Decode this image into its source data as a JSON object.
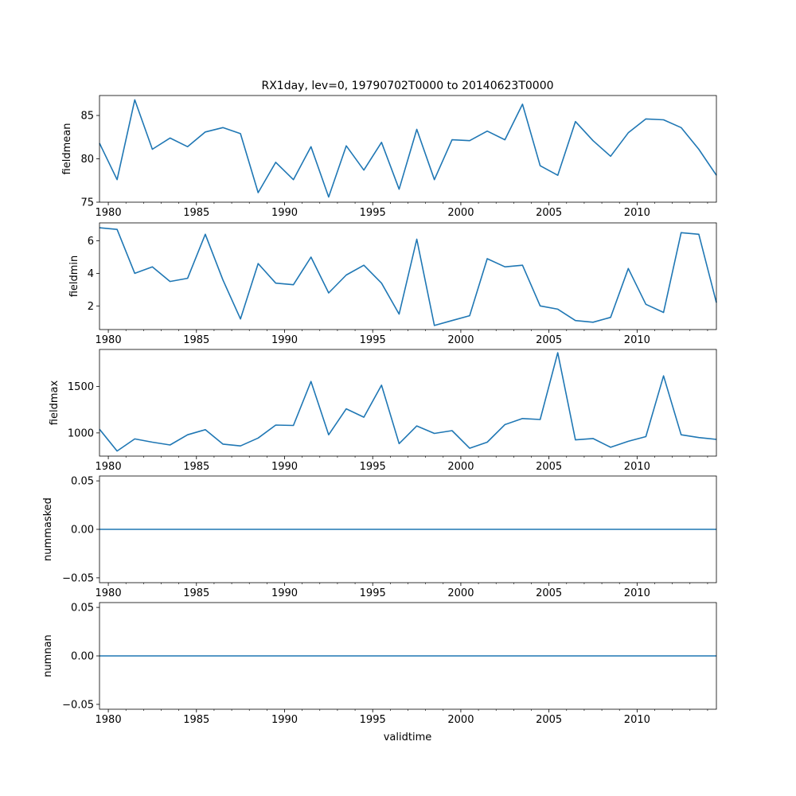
{
  "figure": {
    "title": "RX1day, lev=0, 19790702T0000 to 20140623T0000",
    "xlabel": "validtime",
    "line_color": "#1f77b4",
    "x_ticks": [
      1980,
      1985,
      1990,
      1995,
      2000,
      2005,
      2010
    ],
    "x_tick_labels": [
      "1980",
      "1985",
      "1990",
      "1995",
      "2000",
      "2005",
      "2010"
    ],
    "xlim": [
      1979.5,
      2014.5
    ]
  },
  "chart_data": [
    {
      "type": "line",
      "ylabel": "fieldmean",
      "ylim": [
        75,
        87.3
      ],
      "y_ticks": [
        75,
        80,
        85
      ],
      "y_tick_labels": [
        "75",
        "80",
        "85"
      ],
      "x": [
        1979.5,
        1980.5,
        1981.5,
        1982.5,
        1983.5,
        1984.5,
        1985.5,
        1986.5,
        1987.5,
        1988.5,
        1989.5,
        1990.5,
        1991.5,
        1992.5,
        1993.5,
        1994.5,
        1995.5,
        1996.5,
        1997.5,
        1998.5,
        1999.5,
        2000.5,
        2001.5,
        2002.5,
        2003.5,
        2004.5,
        2005.5,
        2006.5,
        2007.5,
        2008.5,
        2009.5,
        2010.5,
        2011.5,
        2012.5,
        2013.5,
        2014.5
      ],
      "values": [
        81.8,
        77.6,
        86.8,
        81.1,
        82.4,
        81.4,
        83.1,
        83.6,
        82.9,
        76.1,
        79.6,
        77.6,
        81.4,
        75.6,
        81.5,
        78.7,
        81.9,
        76.5,
        83.4,
        77.6,
        82.2,
        82.1,
        83.2,
        82.2,
        86.3,
        79.2,
        78.1,
        84.3,
        82.1,
        80.3,
        83.0,
        84.6,
        84.5,
        83.6,
        81.1,
        78.1
      ]
    },
    {
      "type": "line",
      "ylabel": "fieldmin",
      "ylim": [
        0.55,
        7.1
      ],
      "y_ticks": [
        2,
        4,
        6
      ],
      "y_tick_labels": [
        "2",
        "4",
        "6"
      ],
      "x": [
        1979.5,
        1980.5,
        1981.5,
        1982.5,
        1983.5,
        1984.5,
        1985.5,
        1986.5,
        1987.5,
        1988.5,
        1989.5,
        1990.5,
        1991.5,
        1992.5,
        1993.5,
        1994.5,
        1995.5,
        1996.5,
        1997.5,
        1998.5,
        1999.5,
        2000.5,
        2001.5,
        2002.5,
        2003.5,
        2004.5,
        2005.5,
        2006.5,
        2007.5,
        2008.5,
        2009.5,
        2010.5,
        2011.5,
        2012.5,
        2013.5,
        2014.5
      ],
      "values": [
        6.8,
        6.7,
        4.0,
        4.4,
        3.5,
        3.7,
        6.4,
        3.6,
        1.2,
        4.6,
        3.4,
        3.3,
        5.0,
        2.8,
        3.9,
        4.5,
        3.4,
        1.5,
        6.1,
        0.8,
        1.1,
        1.4,
        4.9,
        4.4,
        4.5,
        2.0,
        1.8,
        1.1,
        1.0,
        1.3,
        4.3,
        2.1,
        1.6,
        6.5,
        6.4,
        2.2
      ]
    },
    {
      "type": "line",
      "ylabel": "fieldmax",
      "ylim": [
        750,
        1900
      ],
      "y_ticks": [
        1000,
        1500
      ],
      "y_tick_labels": [
        "1000",
        "1500"
      ],
      "x": [
        1979.5,
        1980.5,
        1981.5,
        1982.5,
        1983.5,
        1984.5,
        1985.5,
        1986.5,
        1987.5,
        1988.5,
        1989.5,
        1990.5,
        1991.5,
        1992.5,
        1993.5,
        1994.5,
        1995.5,
        1996.5,
        1997.5,
        1998.5,
        1999.5,
        2000.5,
        2001.5,
        2002.5,
        2003.5,
        2004.5,
        2005.5,
        2006.5,
        2007.5,
        2008.5,
        2009.5,
        2010.5,
        2011.5,
        2012.5,
        2013.5,
        2014.5
      ],
      "values": [
        1040,
        805,
        935,
        900,
        870,
        980,
        1035,
        880,
        860,
        945,
        1085,
        1080,
        1555,
        980,
        1260,
        1170,
        1515,
        885,
        1075,
        995,
        1025,
        835,
        900,
        1090,
        1155,
        1145,
        1865,
        925,
        940,
        845,
        910,
        960,
        1615,
        980,
        950,
        930
      ]
    },
    {
      "type": "line",
      "ylabel": "nummasked",
      "ylim": [
        -0.055,
        0.055
      ],
      "y_ticks": [
        -0.05,
        0.0,
        0.05
      ],
      "y_tick_labels": [
        "−0.05",
        "0.00",
        "0.05"
      ],
      "x": [
        1979.5,
        2014.5
      ],
      "values": [
        0,
        0
      ]
    },
    {
      "type": "line",
      "ylabel": "numnan",
      "ylim": [
        -0.055,
        0.055
      ],
      "y_ticks": [
        -0.05,
        0.0,
        0.05
      ],
      "y_tick_labels": [
        "−0.05",
        "0.00",
        "0.05"
      ],
      "x": [
        1979.5,
        2014.5
      ],
      "values": [
        0,
        0
      ]
    }
  ]
}
